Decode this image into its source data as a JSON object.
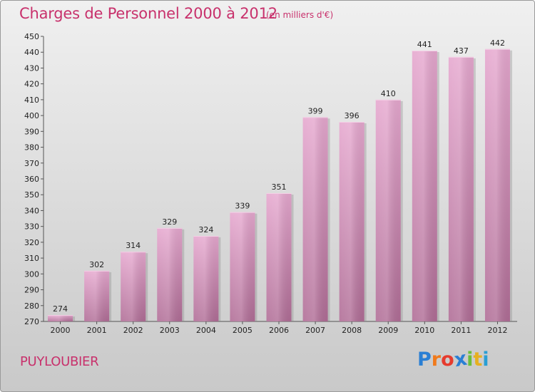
{
  "chart_data": {
    "type": "bar",
    "title": "Charges de Personnel 2000 à 2012",
    "subtitle": "(en milliers d'€)",
    "categories": [
      "2000",
      "2001",
      "2002",
      "2003",
      "2004",
      "2005",
      "2006",
      "2007",
      "2008",
      "2009",
      "2010",
      "2011",
      "2012"
    ],
    "values": [
      274,
      302,
      314,
      329,
      324,
      339,
      351,
      399,
      396,
      410,
      441,
      437,
      442
    ],
    "ylim": [
      270,
      450
    ],
    "ytick_step": 10,
    "grid": false,
    "xlabel": "",
    "ylabel": ""
  },
  "footer": {
    "commune": "PUYLOUBIER",
    "brand_letters": [
      "P",
      "r",
      "o",
      "x",
      "i",
      "t",
      "i"
    ]
  },
  "colors": {
    "title": "#c8316c",
    "bar_top": "#e6a8cf",
    "bar_bottom": "#b06d96",
    "brand": [
      "#2a7fd4",
      "#f07a1c",
      "#e63b2e",
      "#2a7fd4",
      "#6abf3a",
      "#e6b020",
      "#2a9fd4"
    ]
  }
}
